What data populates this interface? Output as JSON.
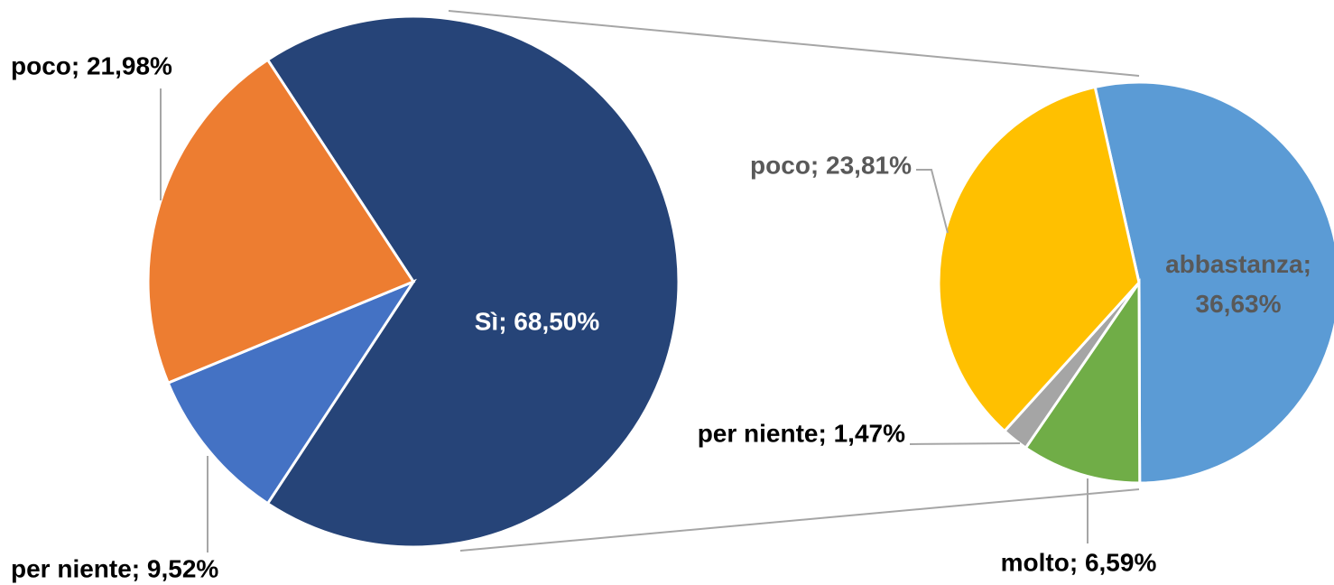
{
  "chart_data": [
    {
      "type": "pie",
      "values": [
        68.5,
        9.52,
        21.98
      ],
      "value_labels": [
        "Sì; 68,50%",
        "per niente; 9,52%",
        "poco; 21,98%"
      ],
      "colors": [
        "#264478",
        "#4472c4",
        "#ed7d31"
      ]
    },
    {
      "type": "pie",
      "values": [
        36.63,
        6.59,
        1.47,
        23.81
      ],
      "value_labels": [
        "abbastanza; 36,63%",
        "molto; 6,59%",
        "per niente; 1,47%",
        "poco; 23,81%"
      ],
      "colors": [
        "#5b9bd5",
        "#70ad47",
        "#a5a5a5",
        "#ffc000"
      ]
    }
  ]
}
